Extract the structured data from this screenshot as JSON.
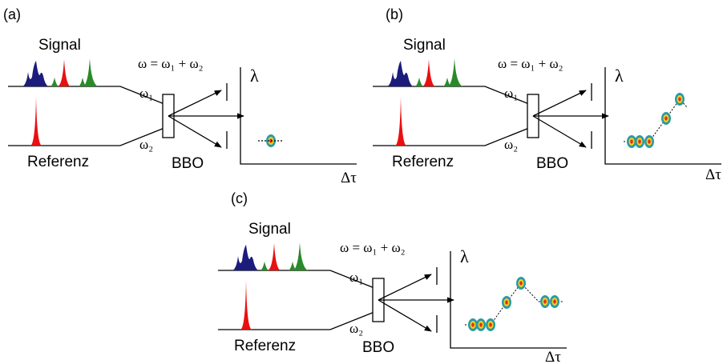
{
  "panels": [
    {
      "label": "(a)",
      "signal": "Signal",
      "reference": "Referenz",
      "crystal": "BBO",
      "equation": "ω = ω₁ + ω₂",
      "omega1": "ω₁",
      "omega2": "ω₂",
      "y_axis": "λ",
      "x_axis": "Δτ"
    },
    {
      "label": "(b)",
      "signal": "Signal",
      "reference": "Referenz",
      "crystal": "BBO",
      "equation": "ω = ω₁ + ω₂",
      "omega1": "ω₁",
      "omega2": "ω₂",
      "y_axis": "λ",
      "x_axis": "Δτ"
    },
    {
      "label": "(c)",
      "signal": "Signal",
      "reference": "Referenz",
      "crystal": "BBO",
      "equation": "ω = ω₁ + ω₂",
      "omega1": "ω₁",
      "omega2": "ω₂",
      "y_axis": "λ",
      "x_axis": "Δτ"
    }
  ]
}
